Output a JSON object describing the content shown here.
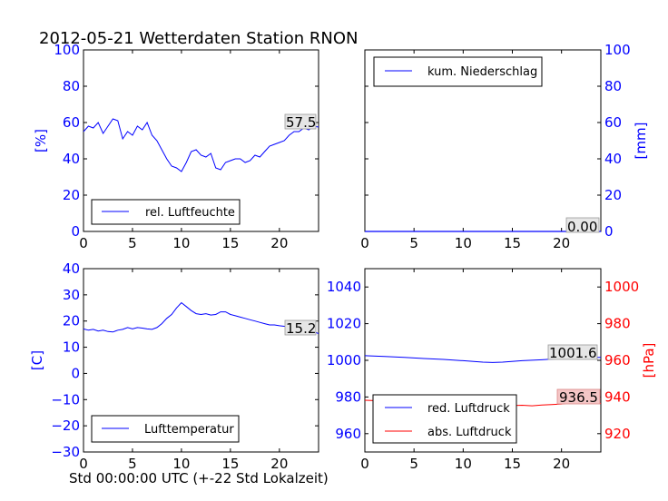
{
  "title": "2012-05-21 Wetterdaten Station RNON",
  "footer_xlabel": "Std 00:00:00 UTC (+-22 Std Lokalzeit)",
  "colors": {
    "blue": "#0000ff",
    "red": "#ff0000",
    "black": "#000000"
  },
  "chart_data": [
    {
      "type": "line",
      "ylabel": "[%]",
      "xlim": [
        0,
        24
      ],
      "ylim": [
        0,
        100
      ],
      "xticks": [
        0,
        5,
        10,
        15,
        20
      ],
      "yticks": [
        0,
        20,
        40,
        60,
        80,
        100
      ],
      "legend": "lower-left",
      "last_value_label": "57.5",
      "series": [
        {
          "name": "rel. Luftfeuchte",
          "color": "#0000ff",
          "x": [
            0,
            0.5,
            1,
            1.5,
            2,
            2.5,
            3,
            3.5,
            4,
            4.5,
            5,
            5.5,
            6,
            6.5,
            7,
            7.5,
            8,
            8.5,
            9,
            9.5,
            10,
            10.5,
            11,
            11.5,
            12,
            12.5,
            13,
            13.5,
            14,
            14.5,
            15,
            15.5,
            16,
            16.5,
            17,
            17.5,
            18,
            18.5,
            19,
            19.5,
            20,
            20.5,
            21,
            21.5,
            22,
            22.5,
            23,
            23.5,
            24
          ],
          "y": [
            55,
            58,
            57,
            60,
            54,
            58,
            62,
            61,
            51,
            55,
            53,
            58,
            56,
            60,
            53,
            50,
            45,
            40,
            36,
            35,
            33,
            38,
            44,
            45,
            42,
            41,
            43,
            35,
            34,
            38,
            39,
            40,
            40,
            38,
            39,
            42,
            41,
            44,
            47,
            48,
            49,
            50,
            53,
            55,
            55,
            57,
            56,
            58,
            57.5
          ]
        }
      ]
    },
    {
      "type": "line",
      "ylabel": "[mm]",
      "xlim": [
        0,
        24
      ],
      "ylim": [
        0,
        100
      ],
      "xticks": [
        0,
        5,
        10,
        15,
        20
      ],
      "yticks": [
        0,
        20,
        40,
        60,
        80,
        100
      ],
      "legend": "top-left",
      "last_value_label": "0.00",
      "series": [
        {
          "name": "kum. Niederschlag",
          "color": "#0000ff",
          "x": [
            0,
            24
          ],
          "y": [
            0,
            0
          ]
        }
      ]
    },
    {
      "type": "line",
      "ylabel": "[C]",
      "xlim": [
        0,
        24
      ],
      "ylim": [
        -30,
        40
      ],
      "xticks": [
        0,
        5,
        10,
        15,
        20
      ],
      "yticks": [
        -30,
        -20,
        -10,
        0,
        10,
        20,
        30,
        40
      ],
      "legend": "lower-left",
      "last_value_label": "15.2",
      "series": [
        {
          "name": "Lufttemperatur",
          "color": "#0000ff",
          "x": [
            0,
            0.5,
            1,
            1.5,
            2,
            2.5,
            3,
            3.5,
            4,
            4.5,
            5,
            5.5,
            6,
            6.5,
            7,
            7.5,
            8,
            8.5,
            9,
            9.5,
            10,
            10.5,
            11,
            11.5,
            12,
            12.5,
            13,
            13.5,
            14,
            14.5,
            15,
            15.5,
            16,
            16.5,
            17,
            17.5,
            18,
            18.5,
            19,
            19.5,
            20,
            20.5,
            21,
            21.5,
            22,
            22.5,
            23,
            23.5,
            24
          ],
          "y": [
            17,
            16.5,
            16.8,
            16.2,
            16.5,
            16,
            15.8,
            16.5,
            16.8,
            17.5,
            17,
            17.5,
            17.3,
            17,
            16.8,
            17.5,
            19,
            21,
            22.5,
            25,
            27,
            25.5,
            24,
            22.8,
            22.5,
            22.8,
            22.3,
            22.5,
            23.5,
            23.5,
            22.5,
            22,
            21.5,
            21,
            20.5,
            20,
            19.5,
            19,
            18.5,
            18.5,
            18.2,
            18,
            18,
            17.8,
            17.5,
            17,
            16.5,
            16,
            15.2
          ]
        }
      ]
    },
    {
      "type": "line",
      "ylabel": "[hPa]",
      "xlim": [
        0,
        24
      ],
      "ylim": [
        950,
        1050
      ],
      "y2lim": [
        910,
        1010
      ],
      "xticks": [
        0,
        5,
        10,
        15,
        20
      ],
      "yticks": [
        960,
        980,
        1000,
        1020,
        1040
      ],
      "y2ticks": [
        920,
        940,
        960,
        980,
        1000
      ],
      "legend": "lower-left",
      "last_value_labels": [
        "1001.6",
        "936.5"
      ],
      "series": [
        {
          "name": "red. Luftdruck",
          "color": "#0000ff",
          "axis": "left",
          "x": [
            0,
            2,
            4,
            6,
            8,
            10,
            12,
            13,
            14,
            16,
            18,
            20,
            22,
            24
          ],
          "y": [
            1002.5,
            1002.1,
            1001.6,
            1001.0,
            1000.5,
            999.8,
            999.0,
            998.8,
            999.0,
            999.8,
            1000.3,
            1001.0,
            1001.5,
            1001.6
          ]
        },
        {
          "name": "abs. Luftdruck",
          "color": "#ff0000",
          "axis": "right",
          "x": [
            0,
            1,
            2,
            3,
            4,
            5,
            6,
            7,
            8,
            9,
            10,
            11,
            12,
            13,
            14,
            15,
            16,
            17,
            18,
            19,
            20,
            21,
            22,
            23,
            24
          ],
          "y": [
            938.2,
            938.0,
            937.5,
            937.7,
            937.2,
            936.9,
            935.7,
            935.9,
            936.4,
            936.3,
            936.8,
            935.6,
            934.9,
            935.4,
            935.1,
            935.3,
            935.5,
            935.2,
            935.6,
            935.9,
            936.2,
            936.8,
            937.0,
            936.7,
            936.5
          ]
        }
      ]
    }
  ]
}
